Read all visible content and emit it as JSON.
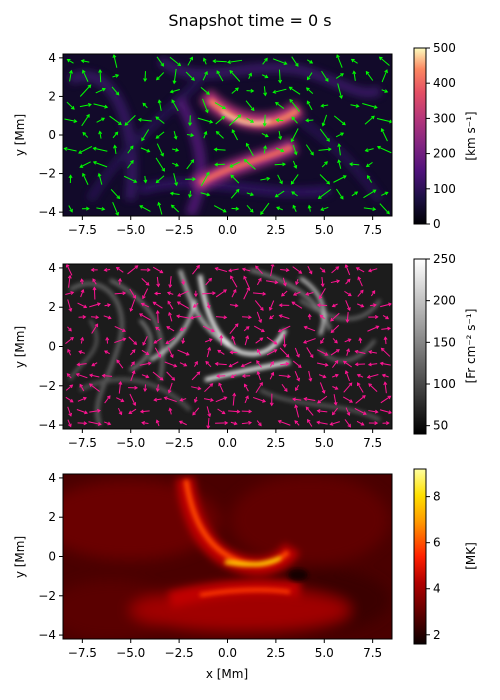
{
  "title": "Snapshot time = 0 s",
  "chart_data": [
    {
      "type": "heatmap",
      "panel": "velocity",
      "colormap": "magma",
      "xlabel": "",
      "ylabel": "y [Mm]",
      "xlim": [
        -8.5,
        8.5
      ],
      "ylim": [
        -4.2,
        4.2
      ],
      "xticks": [
        "−7.5",
        "−5.0",
        "−2.5",
        "0.0",
        "2.5",
        "5.0",
        "7.5"
      ],
      "yticks": [
        "4",
        "2",
        "0",
        "−2",
        "−4"
      ],
      "colorbar": {
        "label": "[km s⁻¹]",
        "range": [
          0,
          500
        ],
        "ticks": [
          "0",
          "100",
          "200",
          "300",
          "400",
          "500"
        ]
      },
      "vector_color": "#00ff00"
    },
    {
      "type": "heatmap",
      "panel": "flux",
      "colormap": "gray",
      "xlabel": "",
      "ylabel": "y [Mm]",
      "xlim": [
        -8.5,
        8.5
      ],
      "ylim": [
        -4.2,
        4.2
      ],
      "xticks": [
        "−7.5",
        "−5.0",
        "−2.5",
        "0.0",
        "2.5",
        "5.0",
        "7.5"
      ],
      "yticks": [
        "4",
        "2",
        "0",
        "−2",
        "−4"
      ],
      "colorbar": {
        "label": "[Fr cm⁻² s⁻¹]",
        "range": [
          40,
          250
        ],
        "ticks": [
          "50",
          "100",
          "150",
          "200",
          "250"
        ]
      },
      "vector_color": "#ff1493"
    },
    {
      "type": "heatmap",
      "panel": "temperature",
      "colormap": "hot",
      "xlabel": "x [Mm]",
      "ylabel": "y [Mm]",
      "xlim": [
        -8.5,
        8.5
      ],
      "ylim": [
        -4.2,
        4.2
      ],
      "xticks": [
        "−7.5",
        "−5.0",
        "−2.5",
        "0.0",
        "2.5",
        "5.0",
        "7.5"
      ],
      "yticks": [
        "4",
        "2",
        "0",
        "−2",
        "−4"
      ],
      "colorbar": {
        "label": "[MK]",
        "range": [
          1.6,
          9.2
        ],
        "ticks": [
          "2",
          "4",
          "6",
          "8"
        ]
      }
    }
  ]
}
